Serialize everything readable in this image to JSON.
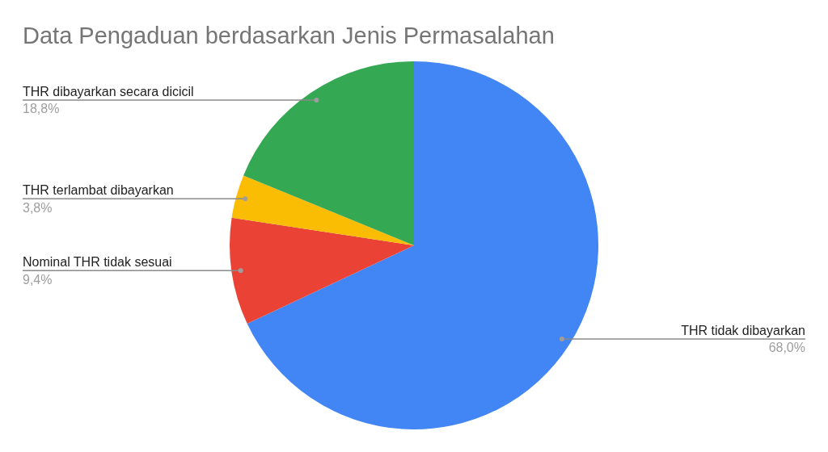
{
  "chart_data": {
    "type": "pie",
    "title": "Data Pengaduan berdasarkan Jenis Permasalahan",
    "categories": [
      "THR tidak dibayarkan",
      "Nominal THR tidak sesuai",
      "THR terlambat dibayarkan",
      "THR dibayarkan secara dicicil"
    ],
    "values": [
      68.0,
      9.4,
      3.8,
      18.8
    ],
    "colors": [
      "#4285f4",
      "#ea4335",
      "#fbbc04",
      "#34a853"
    ],
    "value_labels": [
      "68,0%",
      "9,4%",
      "3,8%",
      "18,8%"
    ]
  }
}
